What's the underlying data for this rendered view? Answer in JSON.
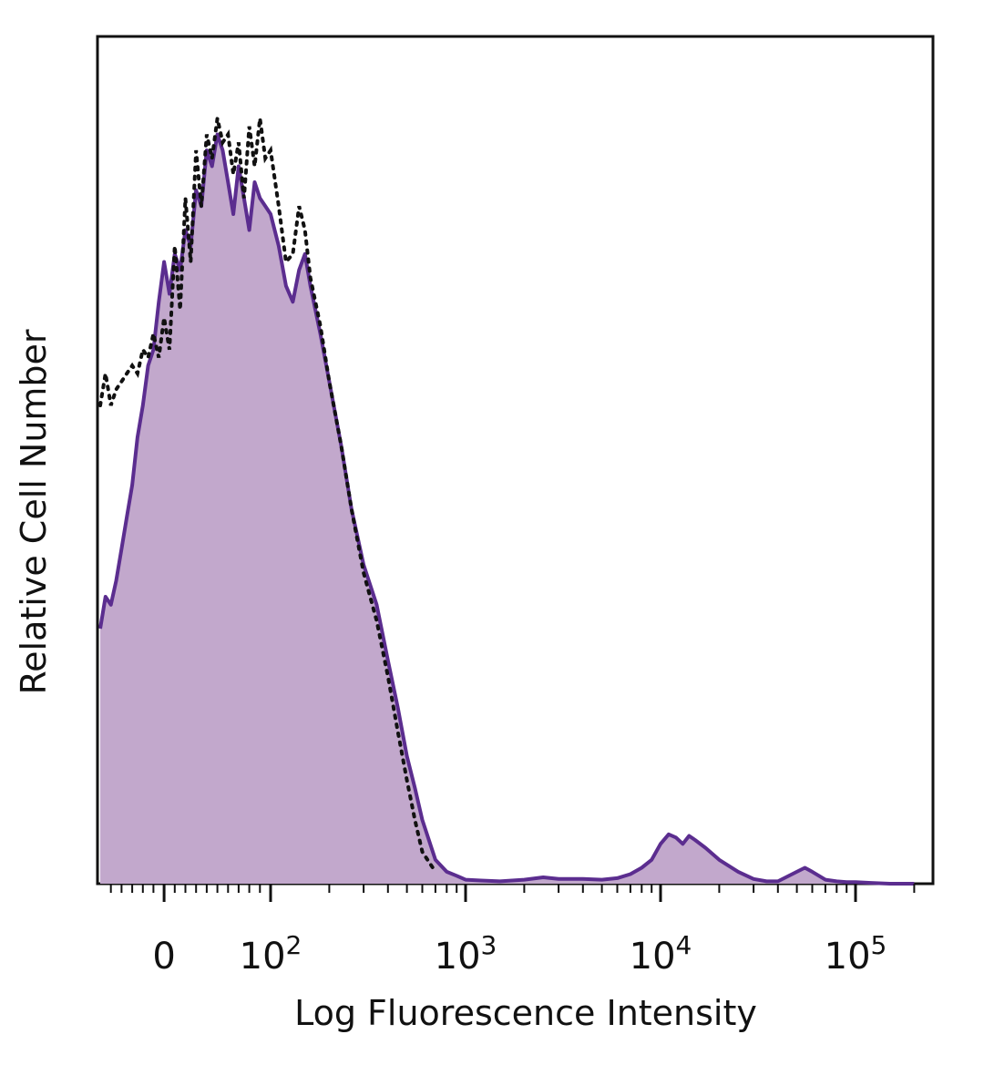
{
  "chart_data": {
    "type": "area",
    "title": "",
    "xlabel": "Log Fluorescence Intensity",
    "ylabel": "Relative Cell Number",
    "x_scale": "biexponential (log above ~10^2)",
    "xlim": [
      -60,
      200000
    ],
    "ylim": [
      0,
      100
    ],
    "grid": false,
    "legend": "none",
    "x_ticks": [
      {
        "value": 0,
        "base": "0",
        "exp": ""
      },
      {
        "value": 100,
        "base": "10",
        "exp": "2"
      },
      {
        "value": 1000,
        "base": "10",
        "exp": "3"
      },
      {
        "value": 10000,
        "base": "10",
        "exp": "4"
      },
      {
        "value": 100000,
        "base": "10",
        "exp": "5"
      }
    ],
    "series": [
      {
        "style": "filled",
        "fill": "#c2a8cc",
        "stroke": "#5b2d8f",
        "x": [
          -60,
          -55,
          -50,
          -45,
          -40,
          -35,
          -30,
          -25,
          -20,
          -15,
          -10,
          -5,
          0,
          5,
          10,
          15,
          20,
          25,
          30,
          35,
          40,
          45,
          50,
          55,
          60,
          65,
          70,
          75,
          80,
          85,
          90,
          95,
          100,
          110,
          120,
          130,
          140,
          150,
          160,
          180,
          200,
          230,
          260,
          300,
          350,
          400,
          450,
          500,
          550,
          600,
          700,
          800,
          900,
          1000,
          1200,
          1500,
          2000,
          2500,
          3000,
          4000,
          5000,
          6000,
          7000,
          8000,
          9000,
          10000,
          11000,
          12000,
          13000,
          14000,
          15000,
          17000,
          20000,
          25000,
          30000,
          35000,
          40000,
          50000,
          55000,
          60000,
          70000,
          80000,
          90000,
          100000,
          120000,
          150000,
          200000
        ],
        "y": [
          32,
          36,
          35,
          38,
          42,
          46,
          50,
          56,
          60,
          65,
          67,
          73,
          78,
          74,
          79,
          77,
          82,
          80,
          87,
          85,
          92,
          90,
          94,
          92,
          88,
          84,
          90,
          86,
          82,
          88,
          86,
          85,
          84,
          80,
          75,
          73,
          77,
          79,
          75,
          69,
          63,
          55,
          47,
          40,
          35,
          28,
          22,
          16,
          12,
          8,
          3,
          1.5,
          1,
          0.5,
          0.4,
          0.3,
          0.5,
          0.8,
          0.6,
          0.6,
          0.5,
          0.7,
          1.2,
          2,
          3,
          5,
          6.2,
          5.8,
          5,
          6,
          5.5,
          4.5,
          3,
          1.5,
          0.6,
          0.3,
          0.3,
          1.5,
          2,
          1.5,
          0.5,
          0.3,
          0.2,
          0.2,
          0.1,
          0,
          0
        ]
      },
      {
        "style": "dotted",
        "stroke": "#111111",
        "x": [
          -60,
          -55,
          -50,
          -45,
          -40,
          -35,
          -30,
          -25,
          -20,
          -15,
          -10,
          -5,
          0,
          5,
          10,
          15,
          20,
          25,
          30,
          35,
          40,
          45,
          50,
          55,
          60,
          65,
          70,
          75,
          80,
          85,
          90,
          95,
          100,
          110,
          120,
          130,
          140,
          150,
          160,
          180,
          200,
          230,
          260,
          300,
          350,
          400,
          450,
          500,
          550,
          600,
          700
        ],
        "y": [
          60,
          64,
          60,
          62,
          63,
          64,
          65,
          64,
          67,
          66,
          69,
          66,
          71,
          67,
          80,
          72,
          86,
          78,
          92,
          85,
          94,
          91,
          96,
          93,
          94,
          89,
          93,
          86,
          95,
          90,
          96,
          91,
          92,
          85,
          78,
          79,
          85,
          82,
          76,
          70,
          63,
          55,
          47,
          39,
          33,
          26,
          19,
          13,
          8,
          4,
          1.5
        ]
      }
    ]
  }
}
